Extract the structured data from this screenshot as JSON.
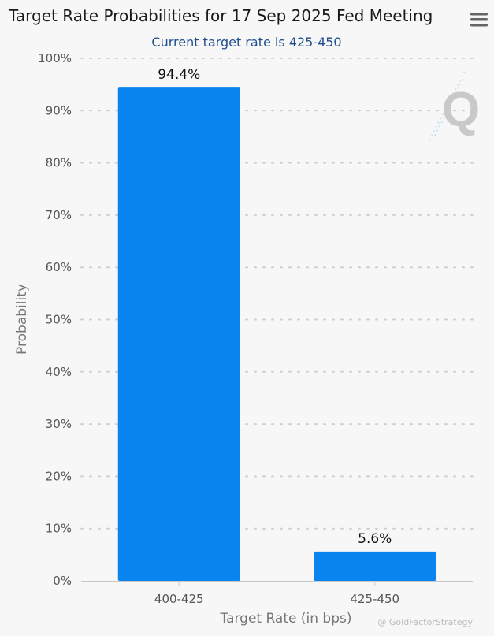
{
  "chart_data": {
    "type": "bar",
    "title": "Target Rate Probabilities for 17 Sep 2025 Fed Meeting",
    "subtitle": "Current target rate is 425-450",
    "xlabel": "Target Rate (in bps)",
    "ylabel": "Probability",
    "categories": [
      "400-425",
      "425-450"
    ],
    "values": [
      94.4,
      5.6
    ],
    "data_labels": [
      "94.4%",
      "5.6%"
    ],
    "ylim": [
      0,
      100
    ],
    "yticks": [
      0,
      10,
      20,
      30,
      40,
      50,
      60,
      70,
      80,
      90,
      100
    ],
    "ytick_format": "%",
    "grid": true,
    "bar_color": "#0a84ee"
  },
  "menu_icon": "hamburger-menu-icon",
  "watermark": {
    "logo_letter": "Q",
    "text": "@ GoldFactorStrategy"
  }
}
